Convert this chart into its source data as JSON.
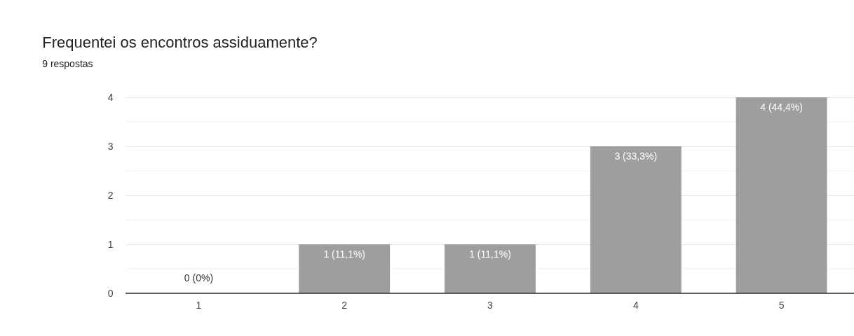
{
  "chart_data": {
    "type": "bar",
    "title": "Frequentei os encontros assiduamente?",
    "subtitle": "9 respostas",
    "categories": [
      "1",
      "2",
      "3",
      "4",
      "5"
    ],
    "values": [
      0,
      1,
      1,
      3,
      4
    ],
    "value_labels": [
      "0 (0%)",
      "1 (11,1%)",
      "1 (11,1%)",
      "3 (33,3%)",
      "4 (44,4%)"
    ],
    "color": "#9e9e9e",
    "ylim": [
      0,
      4
    ],
    "yticks": [
      0,
      {
        "value": 0.5,
        "label": null
      },
      1,
      {
        "value": 1.5,
        "label": null
      },
      2,
      {
        "value": 2.5,
        "label": null
      },
      3,
      {
        "value": 3.5,
        "label": null
      },
      4
    ],
    "grid": "y"
  }
}
